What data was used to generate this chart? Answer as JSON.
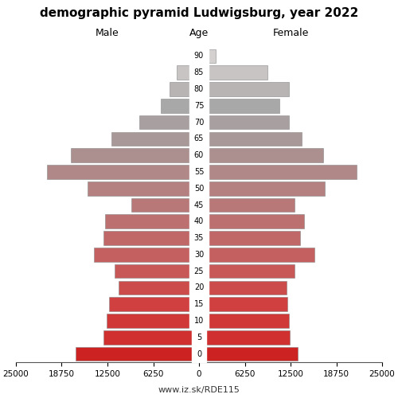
{
  "title": "demographic pyramid Ludwigsburg, year 2022",
  "label_male": "Male",
  "label_female": "Female",
  "label_age": "Age",
  "footer": "www.iz.sk/RDE115",
  "ages": [
    0,
    5,
    10,
    15,
    20,
    25,
    30,
    35,
    40,
    45,
    50,
    55,
    60,
    65,
    70,
    75,
    80,
    85,
    90
  ],
  "male_values": [
    16800,
    13000,
    12600,
    12300,
    11000,
    11500,
    14300,
    13000,
    12800,
    9200,
    15200,
    20800,
    17500,
    12000,
    8200,
    5200,
    4000,
    3000,
    700
  ],
  "female_values": [
    13500,
    12400,
    12300,
    12100,
    12000,
    13000,
    15800,
    13800,
    14300,
    13000,
    17200,
    21500,
    17000,
    14000,
    12300,
    11000,
    12300,
    9300,
    2300
  ],
  "age_colors": [
    "#cc2222",
    "#d03030",
    "#d03838",
    "#d04040",
    "#cc4c4c",
    "#c85858",
    "#c46060",
    "#c06868",
    "#bc7070",
    "#b87878",
    "#b48080",
    "#b08888",
    "#ac9090",
    "#a89898",
    "#a8a0a0",
    "#a8a8a8",
    "#b8b4b4",
    "#c8c4c4",
    "#d4d0d0"
  ],
  "xlim": 25000,
  "xticks": [
    0,
    6250,
    12500,
    18750,
    25000
  ],
  "bar_height": 0.85,
  "background_color": "#ffffff"
}
